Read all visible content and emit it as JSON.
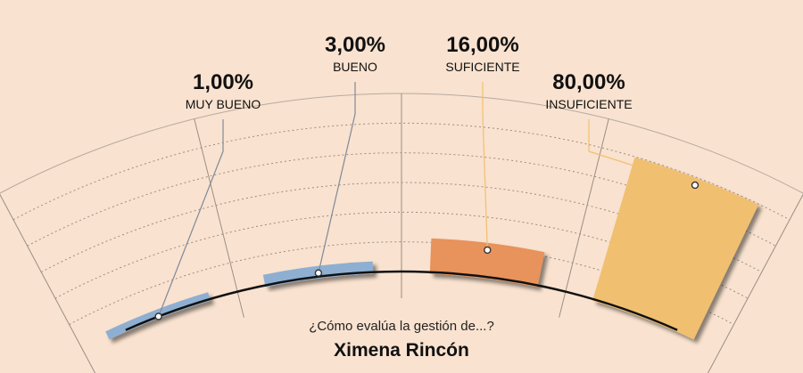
{
  "chart_data": {
    "type": "bar",
    "layout": "radial-fan",
    "question": "¿Cómo evalúa la gestión de...?",
    "subject": "Ximena Rincón",
    "categories": [
      "MUY BUENO",
      "BUENO",
      "SUFICIENTE",
      "INSUFICIENTE"
    ],
    "value_labels": [
      "1,00%",
      "3,00%",
      "16,00%",
      "80,00%"
    ],
    "values": [
      1,
      3,
      16,
      80
    ],
    "ylim": [
      0,
      100
    ],
    "colors": [
      "#8eafd2",
      "#8eafd2",
      "#e8925c",
      "#f0c070"
    ],
    "leader_colors": [
      "#7f8a99",
      "#7f8a99",
      "#f0c070",
      "#f0c070"
    ],
    "grid": true
  }
}
